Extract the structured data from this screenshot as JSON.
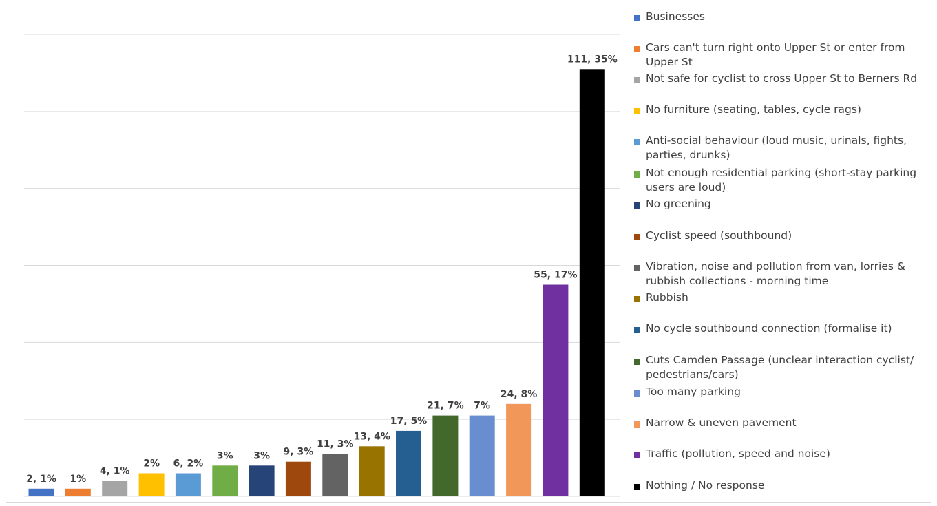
{
  "chart_data": {
    "type": "bar",
    "categories": [
      "Businesses",
      "Cars can't turn right onto Upper St or enter from Upper St",
      "Not safe for cyclist to cross Upper St to Berners Rd",
      "No furniture (seating, tables, cycle rags)",
      "Anti-social behaviour (loud music, urinals, fights, parties, drunks)",
      "Not enough residential parking (short-stay parking users are loud)",
      "No greening",
      "Cyclist speed (southbound)",
      "Vibration, noise and pollution from van, lorries & rubbish collections - morning time",
      "Rubbish",
      "No cycle southbound connection (formalise it)",
      "Cuts Camden Passage (unclear interaction cyclist/ pedestrians/cars)",
      "Too many parking",
      "Narrow & uneven pavement",
      "Traffic (pollution, speed and noise)",
      "Nothing / No response"
    ],
    "values": [
      2,
      2,
      4,
      6,
      6,
      8,
      8,
      9,
      11,
      13,
      17,
      21,
      21,
      24,
      55,
      111
    ],
    "data_labels": [
      "2, 1%",
      "1%",
      "4, 1%",
      "2%",
      "6, 2%",
      "3%",
      "3%",
      "9, 3%",
      "11, 3%",
      "13, 4%",
      "17, 5%",
      "21, 7%",
      "7%",
      "24, 8%",
      "55, 17%",
      "111, 35%"
    ],
    "colors": [
      "#4472c4",
      "#ed7d31",
      "#a5a5a5",
      "#ffc000",
      "#5b9bd5",
      "#70ad47",
      "#264478",
      "#9e480e",
      "#636363",
      "#997300",
      "#255e91",
      "#43682b",
      "#698ed0",
      "#f1975a",
      "#7030a0",
      "#000000"
    ],
    "ylim": [
      0,
      120
    ],
    "grid": true,
    "legend_position": "right"
  }
}
